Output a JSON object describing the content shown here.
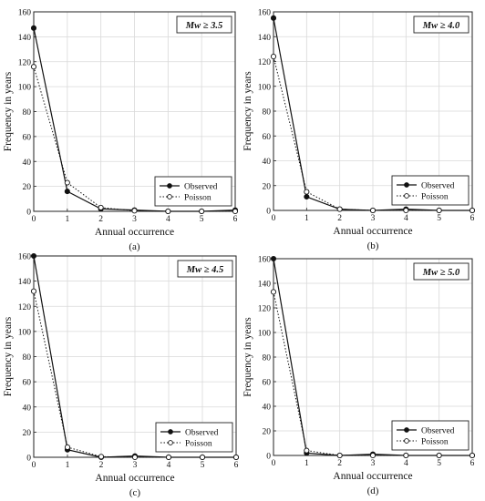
{
  "chart_data": [
    {
      "type": "line",
      "panel_label": "(a)",
      "annotation": "Mw ≥ 3.5",
      "xlabel": "Annual occurrence",
      "ylabel": "Frequency in years",
      "xlim": [
        0,
        6
      ],
      "ylim": [
        0,
        160
      ],
      "xticks": [
        0,
        1,
        2,
        3,
        4,
        5,
        6
      ],
      "yticks": [
        0,
        20,
        40,
        60,
        80,
        100,
        120,
        140,
        160
      ],
      "grid": true,
      "legend_position": "bottom-right",
      "x": [
        0,
        1,
        2,
        3,
        4,
        5,
        6
      ],
      "series": [
        {
          "name": "Observed",
          "style": "solid",
          "marker": "filled-circle",
          "values": [
            147,
            16,
            2,
            1,
            0,
            0,
            1
          ]
        },
        {
          "name": "Poisson",
          "style": "dotted",
          "marker": "open-circle",
          "values": [
            116,
            23,
            3,
            0.5,
            0,
            0,
            0
          ]
        }
      ]
    },
    {
      "type": "line",
      "panel_label": "(b)",
      "annotation": "Mw ≥ 4.0",
      "xlabel": "Annual occurrence",
      "ylabel": "Frequency in years",
      "xlim": [
        0,
        6
      ],
      "ylim": [
        0,
        160
      ],
      "xticks": [
        0,
        1,
        2,
        3,
        4,
        5,
        6
      ],
      "yticks": [
        0,
        20,
        40,
        60,
        80,
        100,
        120,
        140,
        160
      ],
      "grid": true,
      "legend_position": "bottom-right",
      "x": [
        0,
        1,
        2,
        3,
        4,
        5,
        6
      ],
      "series": [
        {
          "name": "Observed",
          "style": "solid",
          "marker": "filled-circle",
          "values": [
            155,
            11,
            1,
            0,
            1,
            0,
            0
          ]
        },
        {
          "name": "Poisson",
          "style": "dotted",
          "marker": "open-circle",
          "values": [
            124,
            15,
            1,
            0,
            0,
            0,
            0
          ]
        }
      ]
    },
    {
      "type": "line",
      "panel_label": "(c)",
      "annotation": "Mw ≥ 4.5",
      "xlabel": "Annual occurrence",
      "ylabel": "Frequency in years",
      "xlim": [
        0,
        6
      ],
      "ylim": [
        0,
        160
      ],
      "xticks": [
        0,
        1,
        2,
        3,
        4,
        5,
        6
      ],
      "yticks": [
        0,
        20,
        40,
        60,
        80,
        100,
        120,
        140,
        160
      ],
      "grid": true,
      "legend_position": "bottom-right",
      "x": [
        0,
        1,
        2,
        3,
        4,
        5,
        6
      ],
      "series": [
        {
          "name": "Observed",
          "style": "solid",
          "marker": "filled-circle",
          "values": [
            160,
            6,
            0,
            1,
            0,
            0,
            0
          ]
        },
        {
          "name": "Poisson",
          "style": "dotted",
          "marker": "open-circle",
          "values": [
            132,
            8,
            0.5,
            0,
            0,
            0,
            0
          ]
        }
      ]
    },
    {
      "type": "line",
      "panel_label": "(d)",
      "annotation": "Mw ≥ 5.0",
      "xlabel": "Annual occurrence",
      "ylabel": "Frequency in years",
      "xlim": [
        0,
        6
      ],
      "ylim": [
        0,
        160
      ],
      "xticks": [
        0,
        1,
        2,
        3,
        4,
        5,
        6
      ],
      "yticks": [
        0,
        20,
        40,
        60,
        80,
        100,
        120,
        140,
        160
      ],
      "grid": true,
      "legend_position": "bottom-right",
      "x": [
        0,
        1,
        2,
        3,
        4,
        5,
        6
      ],
      "series": [
        {
          "name": "Observed",
          "style": "solid",
          "marker": "filled-circle",
          "values": [
            160,
            2,
            0,
            1,
            0,
            0,
            0
          ]
        },
        {
          "name": "Poisson",
          "style": "dotted",
          "marker": "open-circle",
          "values": [
            133,
            4,
            0,
            0,
            0,
            0,
            0
          ]
        }
      ]
    }
  ]
}
